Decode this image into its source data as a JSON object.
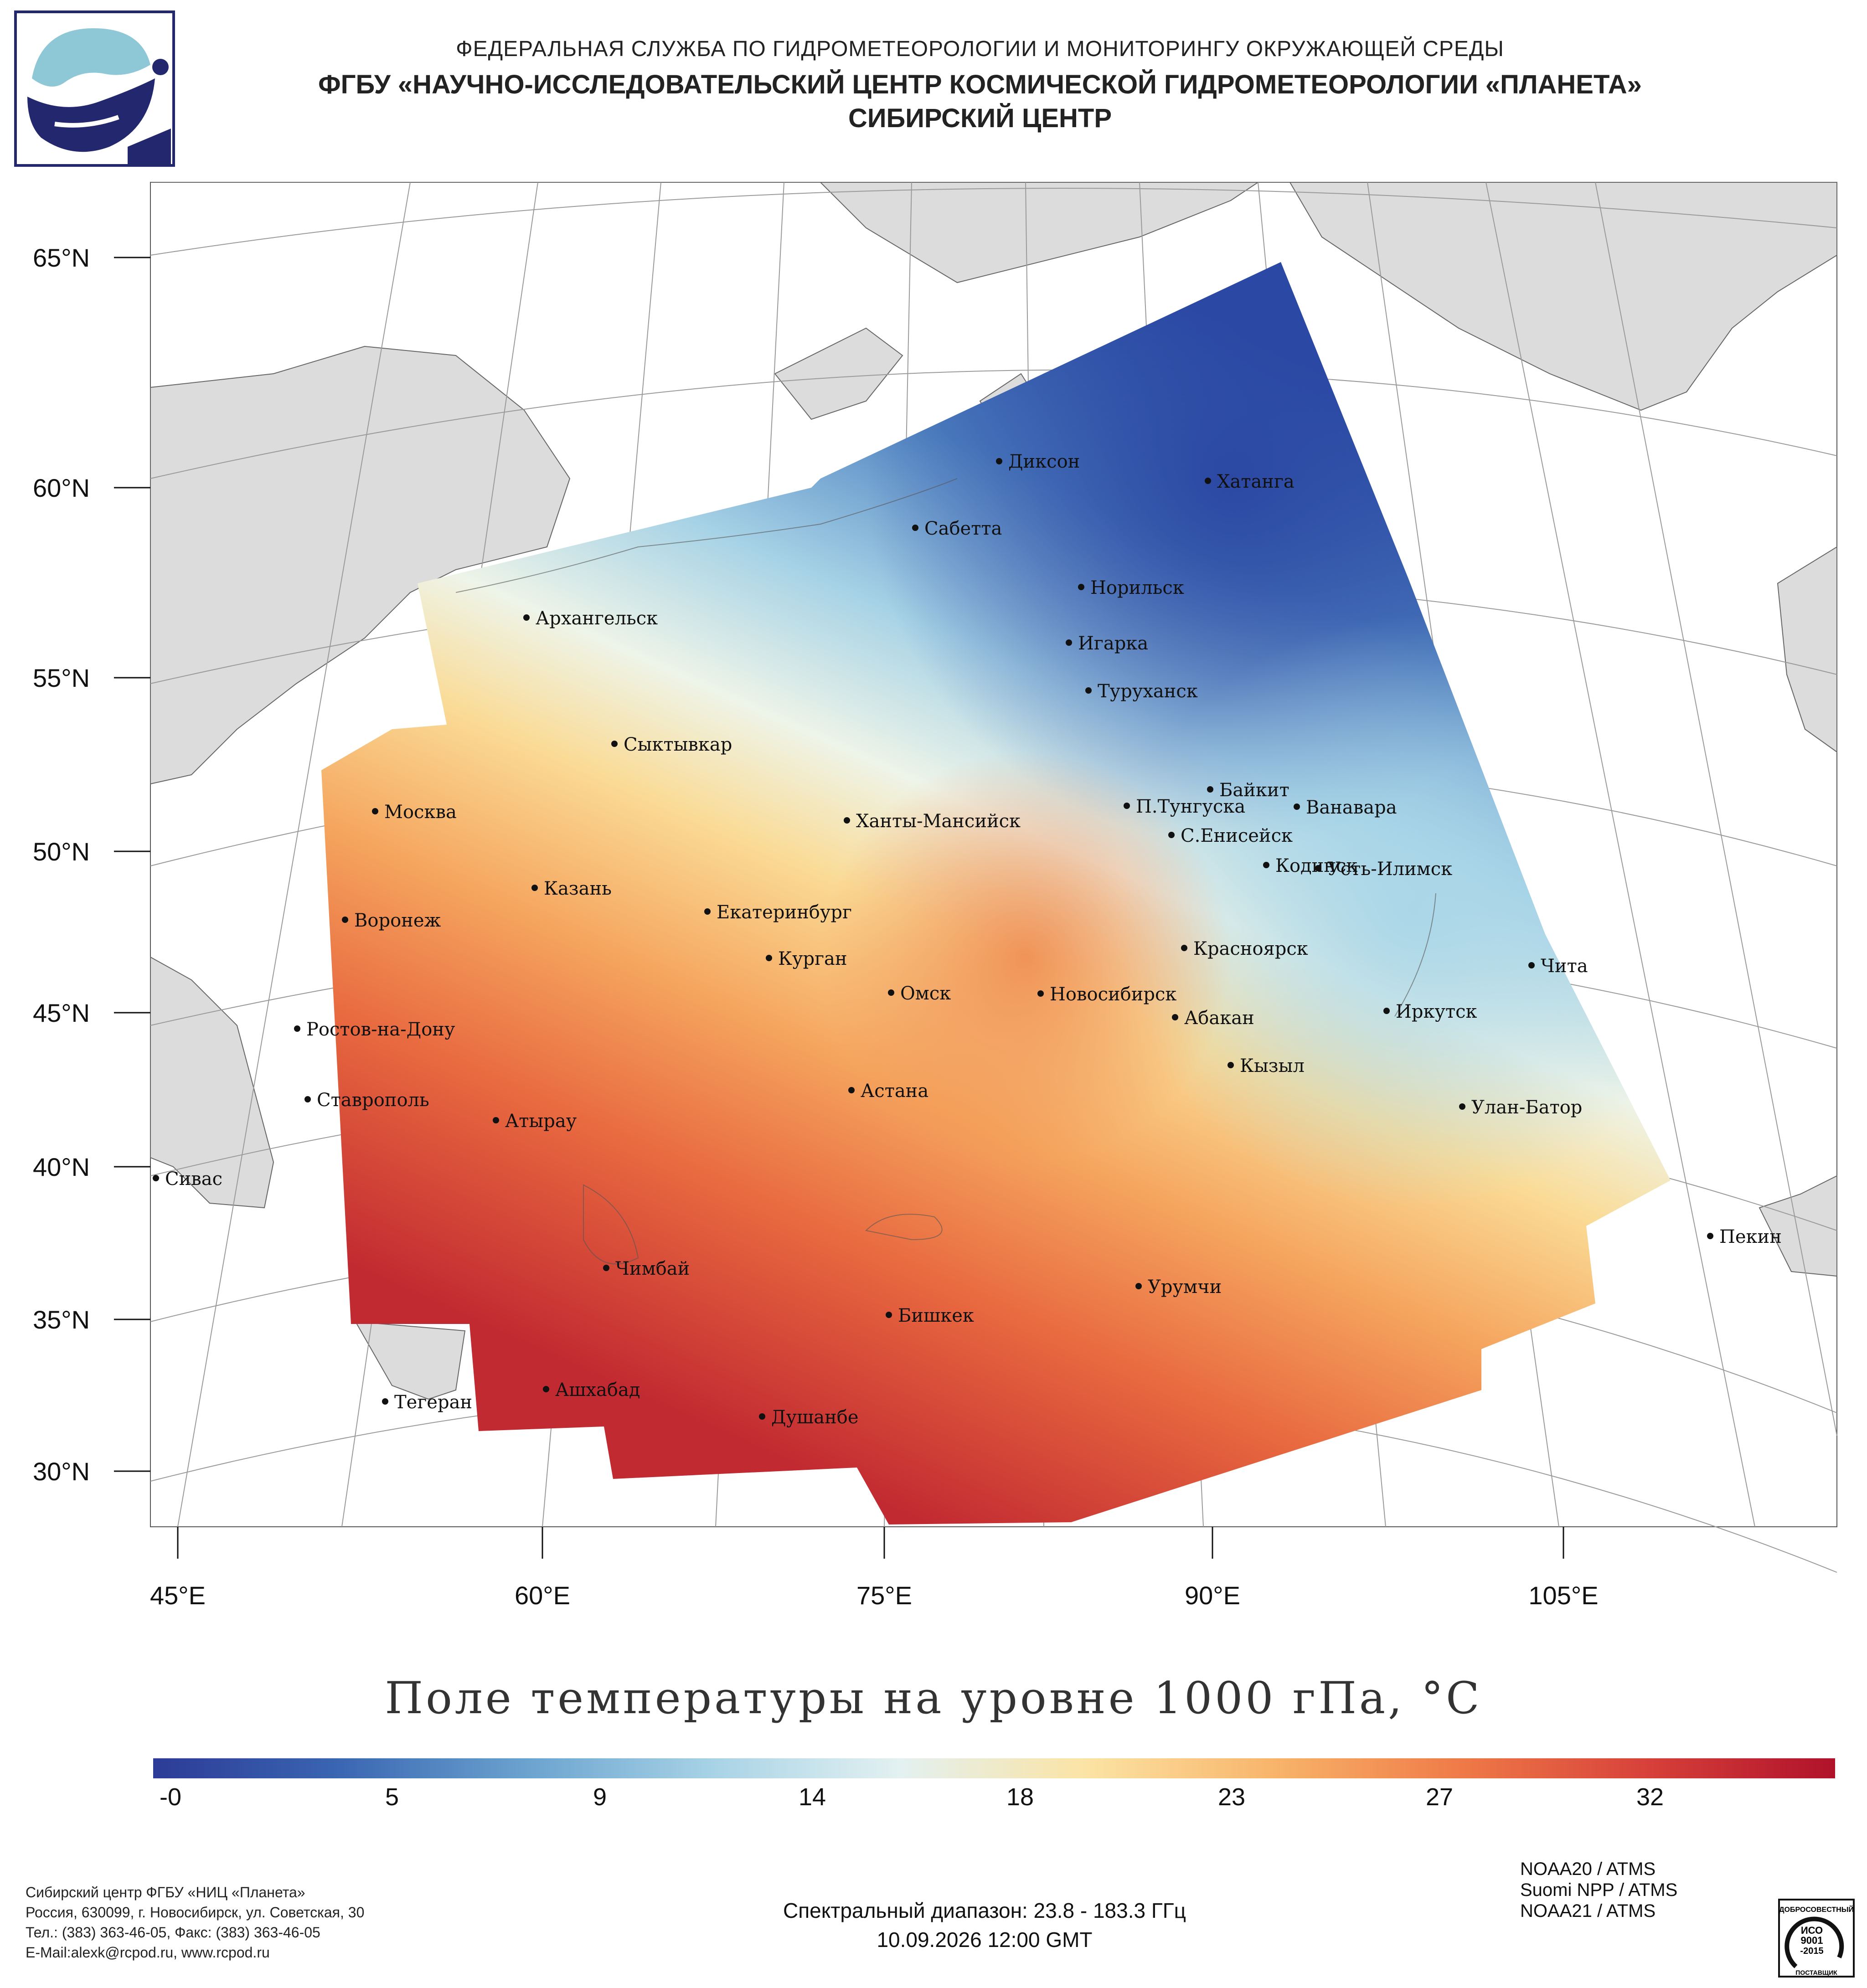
{
  "header": {
    "line1": "ФЕДЕРАЛЬНАЯ СЛУЖБА ПО ГИДРОМЕТЕОРОЛОГИИ И МОНИТОРИНГУ ОКРУЖАЮЩЕЙ СРЕДЫ",
    "line2": "ФГБУ «НАУЧНО-ИССЛЕДОВАТЕЛЬСКИЙ ЦЕНТР КОСМИЧЕСКОЙ ГИДРОМЕТЕОРОЛОГИИ «ПЛАНЕТА»",
    "line3": "СИБИРСКИЙ ЦЕНТР"
  },
  "map": {
    "lat_labels": [
      "65°N",
      "60°N",
      "55°N",
      "50°N",
      "45°N",
      "40°N",
      "35°N",
      "30°N"
    ],
    "lon_labels": [
      "45°E",
      "60°E",
      "75°E",
      "90°E",
      "105°E"
    ],
    "cities": [
      {
        "name": "Диксон"
      },
      {
        "name": "Хатанга"
      },
      {
        "name": "Сабетта"
      },
      {
        "name": "Норильск"
      },
      {
        "name": "Архангельск"
      },
      {
        "name": "Игарка"
      },
      {
        "name": "Туруханск"
      },
      {
        "name": "Сыктывкар"
      },
      {
        "name": "Байкит"
      },
      {
        "name": "П.Тунгуска"
      },
      {
        "name": "Ванавара"
      },
      {
        "name": "Москва"
      },
      {
        "name": "Ханты-Мансийск"
      },
      {
        "name": "С.Енисейск"
      },
      {
        "name": "Кодинск"
      },
      {
        "name": "Усть-Илимск"
      },
      {
        "name": "Казань"
      },
      {
        "name": "Екатеринбург"
      },
      {
        "name": "Воронеж"
      },
      {
        "name": "Красноярск"
      },
      {
        "name": "Курган"
      },
      {
        "name": "Чита"
      },
      {
        "name": "Омск"
      },
      {
        "name": "Новосибирск"
      },
      {
        "name": "Ростов-на-Дону"
      },
      {
        "name": "Иркутск"
      },
      {
        "name": "Абакан"
      },
      {
        "name": "Кызыл"
      },
      {
        "name": "Астана"
      },
      {
        "name": "Ставрополь"
      },
      {
        "name": "Улан-Батор"
      },
      {
        "name": "Атырау"
      },
      {
        "name": "Сивас"
      },
      {
        "name": "Пекин"
      },
      {
        "name": "Чимбай"
      },
      {
        "name": "Урумчи"
      },
      {
        "name": "Бишкек"
      },
      {
        "name": "Ашхабад"
      },
      {
        "name": "Тегеран"
      },
      {
        "name": "Душанбе"
      }
    ]
  },
  "title": "Поле температуры на уровне 1000 гПа, °C",
  "colorbar": {
    "ticks": [
      "-0",
      "5",
      "9",
      "14",
      "18",
      "23",
      "27",
      "32"
    ],
    "colors": [
      "#2c3b97",
      "#3a66b2",
      "#6ba3cf",
      "#a8d3e6",
      "#e3f1f1",
      "#fbe3a3",
      "#f8b46a",
      "#ef7a47",
      "#d7403a",
      "#b0122a"
    ]
  },
  "footer": {
    "org_line1": "Сибирский центр ФГБУ «НИЦ «Планета»",
    "org_line2": "Россия, 630099, г. Новосибирск, ул. Советская, 30",
    "org_line3": "Тел.: (383) 363-46-05, Факс: (383) 363-46-05",
    "org_line4": "E-Mail:alexk@rcpod.ru, www.rcpod.ru",
    "spectral": "Спектральный диапазон: 23.8 - 183.3 ГГц",
    "datetime": "10.09.2026 12:00 GMT",
    "sensors": [
      "NOAA20 / ATMS",
      "Suomi NPP / ATMS",
      "NOAA21 / ATMS"
    ],
    "badge_top": "ДОБРОСОВЕСТНЫЙ",
    "badge_mid1": "ИСО",
    "badge_mid2": "9001",
    "badge_mid3": "-2015",
    "badge_bottom": "ПОСТАВЩИК"
  }
}
